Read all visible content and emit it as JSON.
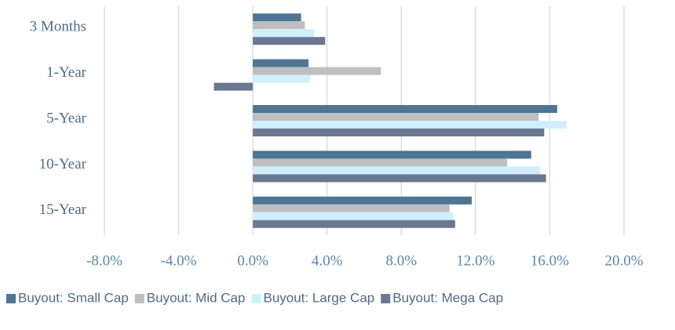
{
  "chart_data": {
    "type": "hbar",
    "categories": [
      "3 Months",
      "1-Year",
      "5-Year",
      "10-Year",
      "15-Year"
    ],
    "series": [
      {
        "name": "Buyout: Small Cap",
        "color": "#4d7595",
        "values": [
          2.6,
          3.0,
          16.4,
          15.0,
          11.8
        ]
      },
      {
        "name": "Buyout: Mid Cap",
        "color": "#bfbfbf",
        "values": [
          2.8,
          6.9,
          15.4,
          13.7,
          10.6
        ]
      },
      {
        "name": "Buyout: Large Cap",
        "color": "#cfefff",
        "values": [
          3.3,
          3.1,
          16.9,
          15.5,
          10.8
        ]
      },
      {
        "name": "Buyout: Mega Cap",
        "color": "#6a7891",
        "values": [
          3.9,
          -2.1,
          15.7,
          15.8,
          10.9
        ]
      }
    ],
    "xlim": [
      -8,
      20
    ],
    "xticks": [
      {
        "value": -8,
        "label": "-8.0%"
      },
      {
        "value": -4,
        "label": "-4.0%"
      },
      {
        "value": 0,
        "label": "0.0%"
      },
      {
        "value": 4,
        "label": "4.0%"
      },
      {
        "value": 8,
        "label": "8.0%"
      },
      {
        "value": 12,
        "label": "12.0%"
      },
      {
        "value": 16,
        "label": "16.0%"
      },
      {
        "value": 20,
        "label": "20.0%"
      }
    ],
    "grid": true,
    "legend": "bottom"
  }
}
